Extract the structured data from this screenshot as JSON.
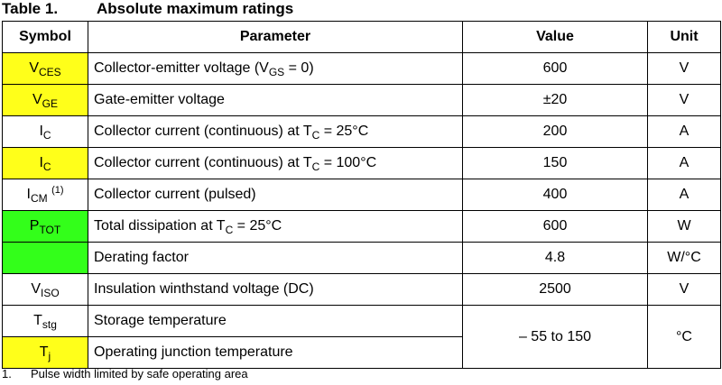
{
  "title": {
    "number": "Table 1.",
    "text": "Absolute maximum ratings"
  },
  "headers": {
    "symbol": "Symbol",
    "parameter": "Parameter",
    "value": "Value",
    "unit": "Unit"
  },
  "highlight_colors": {
    "yellow": "#ffff1a",
    "green": "#33ff1a"
  },
  "rows": [
    {
      "sym": "V",
      "sym_sub": "CES",
      "param": "Collector-emitter voltage (V",
      "param_sub": "GS",
      "param_tail": " = 0)",
      "value": "600",
      "unit": "V"
    },
    {
      "sym": "V",
      "sym_sub": "GE",
      "param": "Gate-emitter voltage",
      "value": "±20",
      "unit": "V"
    },
    {
      "sym": "I",
      "sym_sub": "C",
      "param": "Collector current (continuous) at T",
      "param_sub": "C",
      "param_tail": " = 25°C",
      "value": "200",
      "unit": "A"
    },
    {
      "sym": "I",
      "sym_sub": "C",
      "param": "Collector current (continuous) at T",
      "param_sub": "C",
      "param_tail": " = 100°C",
      "value": "150",
      "unit": "A"
    },
    {
      "sym": "I",
      "sym_sub": "CM",
      "sym_sup": "(1)",
      "param": "Collector current (pulsed)",
      "value": "400",
      "unit": "A"
    },
    {
      "sym": "P",
      "sym_sub": "TOT",
      "param": "Total dissipation at T",
      "param_sub": "C",
      "param_tail": " = 25°C",
      "value": "600",
      "unit": "W"
    },
    {
      "param": "Derating factor",
      "value": "4.8",
      "unit": "W/°C"
    },
    {
      "sym": "V",
      "sym_sub": "ISO",
      "param": "Insulation winthstand voltage (DC)",
      "value": "2500",
      "unit": "V"
    },
    {
      "sym": "T",
      "sym_sub": "stg",
      "param": "Storage temperature",
      "value": "– 55 to 150",
      "unit": "°C"
    },
    {
      "sym": "T",
      "sym_sub": "j",
      "param": "Operating junction temperature"
    }
  ],
  "footnote": {
    "number": "1.",
    "text": "Pulse width limited by safe operating area"
  }
}
